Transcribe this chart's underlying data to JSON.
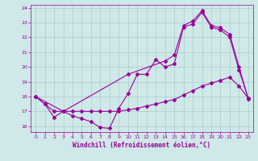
{
  "xlabel": "Windchill (Refroidissement éolien,°C)",
  "xlim": [
    -0.5,
    23.5
  ],
  "ylim": [
    15.6,
    24.2
  ],
  "yticks": [
    16,
    17,
    18,
    19,
    20,
    21,
    22,
    23,
    24
  ],
  "xticks": [
    0,
    1,
    2,
    3,
    4,
    5,
    6,
    7,
    8,
    9,
    10,
    11,
    12,
    13,
    14,
    15,
    16,
    17,
    18,
    19,
    20,
    21,
    22,
    23
  ],
  "bg_color": "#cfe8e8",
  "grid_color": "#aacccc",
  "line_color": "#990099",
  "line1_x": [
    0,
    1,
    2,
    3,
    4,
    5,
    6,
    7,
    8,
    9,
    10,
    11,
    12,
    13,
    14,
    15,
    16,
    17,
    18,
    19,
    20,
    21,
    22,
    23
  ],
  "line1_y": [
    18.0,
    17.5,
    16.6,
    17.0,
    16.7,
    16.5,
    16.3,
    15.9,
    15.85,
    17.2,
    18.2,
    19.5,
    19.5,
    20.5,
    20.0,
    20.2,
    22.7,
    22.9,
    23.7,
    22.7,
    22.5,
    22.0,
    19.8,
    17.9
  ],
  "line2_x": [
    0,
    1,
    2,
    3,
    4,
    5,
    6,
    7,
    8,
    9,
    10,
    11,
    12,
    13,
    14,
    15,
    16,
    17,
    18,
    19,
    20,
    21,
    22,
    23
  ],
  "line2_y": [
    18.0,
    17.5,
    17.0,
    17.0,
    17.0,
    17.0,
    17.0,
    17.0,
    17.0,
    17.0,
    17.1,
    17.2,
    17.35,
    17.5,
    17.65,
    17.8,
    18.1,
    18.4,
    18.7,
    18.9,
    19.1,
    19.3,
    18.7,
    17.9
  ],
  "line3_x": [
    0,
    3,
    10,
    14,
    15,
    16,
    17,
    18,
    19,
    20,
    21,
    22,
    23
  ],
  "line3_y": [
    18.0,
    17.0,
    19.5,
    20.4,
    20.8,
    22.8,
    23.1,
    23.8,
    22.8,
    22.65,
    22.2,
    20.0,
    17.85
  ]
}
